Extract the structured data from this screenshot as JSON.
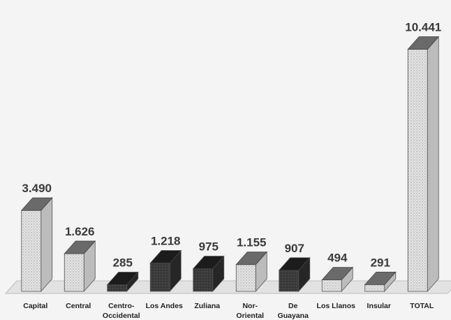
{
  "chart_data": {
    "type": "bar",
    "categories": [
      [
        "Capital"
      ],
      [
        "Central"
      ],
      [
        "Centro-",
        "Occidental"
      ],
      [
        "Los Andes"
      ],
      [
        "Zuliana"
      ],
      [
        "Nor-",
        "Oriental"
      ],
      [
        "De",
        "Guayana"
      ],
      [
        "Los Llanos"
      ],
      [
        "Insular"
      ],
      [
        "TOTAL"
      ]
    ],
    "values": [
      3490,
      1626,
      285,
      1218,
      975,
      1155,
      907,
      494,
      291,
      10441
    ],
    "value_labels": [
      "3.490",
      "1.626",
      "285",
      "1.218",
      "975",
      "1.155",
      "907",
      "494",
      "291",
      "10.441"
    ],
    "title": "",
    "xlabel": "",
    "ylabel": "",
    "ylim": [
      0,
      11000
    ],
    "grid": false,
    "legend": "none",
    "style": "3d",
    "colors": {
      "light_bar": "#d6d6d6",
      "dark_bar": "#3c3c3c",
      "floor": "#e2e2e2",
      "background": "#f4f4f4",
      "text": "#222222"
    },
    "bar_shades": [
      "light",
      "light",
      "dark",
      "dark",
      "dark",
      "light",
      "dark",
      "light",
      "light",
      "light"
    ]
  }
}
